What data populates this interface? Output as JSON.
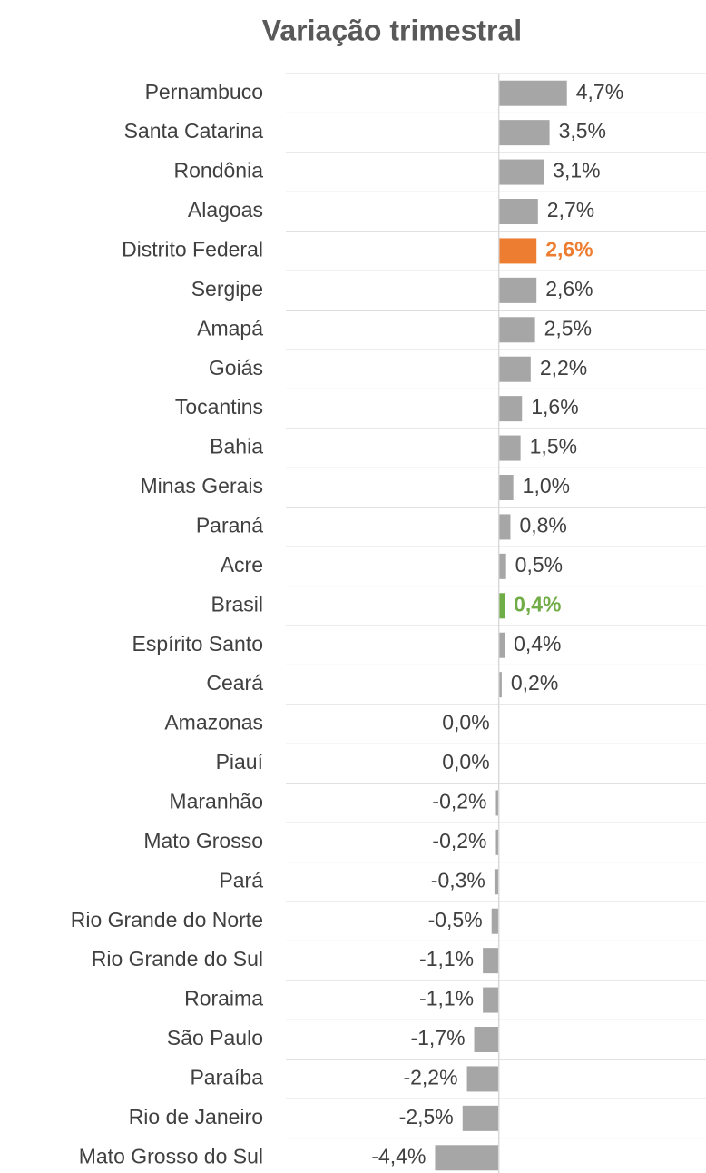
{
  "chart_data": {
    "type": "barh",
    "title": "Variação trimestral",
    "categories": [
      "Pernambuco",
      "Santa Catarina",
      "Rondônia",
      "Alagoas",
      "Distrito Federal",
      "Sergipe",
      "Amapá",
      "Goiás",
      "Tocantins",
      "Bahia",
      "Minas Gerais",
      "Paraná",
      "Acre",
      "Brasil",
      "Espírito Santo",
      "Ceará",
      "Amazonas",
      "Piauí",
      "Maranhão",
      "Mato Grosso",
      "Pará",
      "Rio Grande do Norte",
      "Rio Grande do Sul",
      "Roraima",
      "São Paulo",
      "Paraíba",
      "Rio de Janeiro",
      "Mato Grosso do Sul"
    ],
    "values": [
      4.7,
      3.5,
      3.1,
      2.7,
      2.6,
      2.6,
      2.5,
      2.2,
      1.6,
      1.5,
      1.0,
      0.8,
      0.5,
      0.4,
      0.4,
      0.2,
      0.0,
      0.0,
      -0.2,
      -0.2,
      -0.3,
      -0.5,
      -1.1,
      -1.1,
      -1.7,
      -2.2,
      -2.5,
      -4.4
    ],
    "value_labels": [
      "4,7%",
      "3,5%",
      "3,1%",
      "2,7%",
      "2,6%",
      "2,6%",
      "2,5%",
      "2,2%",
      "1,6%",
      "1,5%",
      "1,0%",
      "0,8%",
      "0,5%",
      "0,4%",
      "0,4%",
      "0,2%",
      "0,0%",
      "0,0%",
      "-0,2%",
      "-0,2%",
      "-0,3%",
      "-0,5%",
      "-1,1%",
      "-1,1%",
      "-1,7%",
      "-2,2%",
      "-2,5%",
      "-4,4%"
    ],
    "colors": [
      "#a6a6a6",
      "#a6a6a6",
      "#a6a6a6",
      "#a6a6a6",
      "#ed7d31",
      "#a6a6a6",
      "#a6a6a6",
      "#a6a6a6",
      "#a6a6a6",
      "#a6a6a6",
      "#a6a6a6",
      "#a6a6a6",
      "#a6a6a6",
      "#70ad47",
      "#a6a6a6",
      "#a6a6a6",
      "#a6a6a6",
      "#a6a6a6",
      "#a6a6a6",
      "#a6a6a6",
      "#a6a6a6",
      "#a6a6a6",
      "#a6a6a6",
      "#a6a6a6",
      "#a6a6a6",
      "#a6a6a6",
      "#a6a6a6",
      "#a6a6a6"
    ],
    "xlim": [
      -14.7,
      14.3
    ],
    "grid": true
  }
}
